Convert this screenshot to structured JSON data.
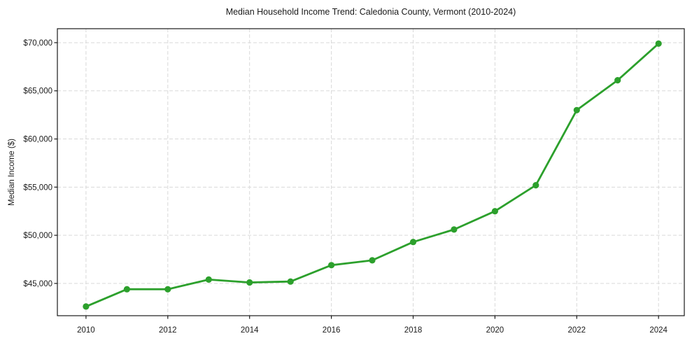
{
  "chart_data": {
    "type": "line",
    "title": "Median Household Income Trend: Caledonia County, Vermont (2010-2024)",
    "xlabel": "",
    "ylabel": "Median Income ($)",
    "x": [
      2010,
      2011,
      2012,
      2013,
      2014,
      2015,
      2016,
      2017,
      2018,
      2019,
      2020,
      2021,
      2022,
      2023,
      2024
    ],
    "series": [
      {
        "name": "Median Household Income",
        "values": [
          42600,
          44400,
          44400,
          45400,
          45100,
          45200,
          46900,
          47400,
          49300,
          50600,
          52500,
          55200,
          63000,
          66100,
          69900
        ]
      }
    ],
    "xlim": [
      2009.3,
      2024.63
    ],
    "ylim": [
      41650,
      71450
    ],
    "xticks": [
      2010,
      2012,
      2014,
      2016,
      2018,
      2020,
      2022,
      2024
    ],
    "xtick_labels": [
      "2010",
      "2012",
      "2014",
      "2016",
      "2018",
      "2020",
      "2022",
      "2024"
    ],
    "yticks": [
      45000,
      50000,
      55000,
      60000,
      65000,
      70000
    ],
    "ytick_labels": [
      "$45,000",
      "$50,000",
      "$55,000",
      "$60,000",
      "$65,000",
      "$70,000"
    ],
    "grid": true,
    "grid_style": "dashed",
    "legend_position": "none",
    "colors": {
      "line": "#2ca02c",
      "marker": "#2ca02c",
      "grid": "#d9d9d9",
      "axis": "#1a1a1a",
      "background": "#ffffff"
    }
  }
}
